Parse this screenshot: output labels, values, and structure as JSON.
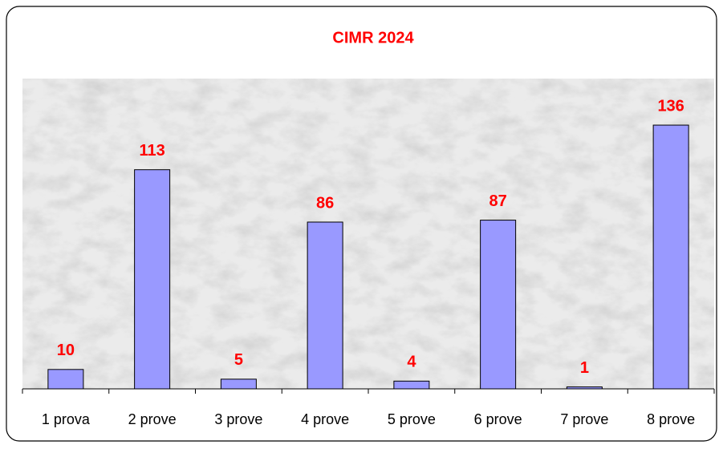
{
  "chart_data": {
    "type": "bar",
    "title": "CIMR 2024",
    "categories": [
      "1 prova",
      "2 prove",
      "3 prove",
      "4 prove",
      "5 prove",
      "6 prove",
      "7 prove",
      "8 prove"
    ],
    "values": [
      10,
      113,
      5,
      86,
      4,
      87,
      1,
      136
    ],
    "color": "#9999ff",
    "label_color": "#ff0000",
    "ylim": [
      0,
      160
    ],
    "grid": false
  }
}
